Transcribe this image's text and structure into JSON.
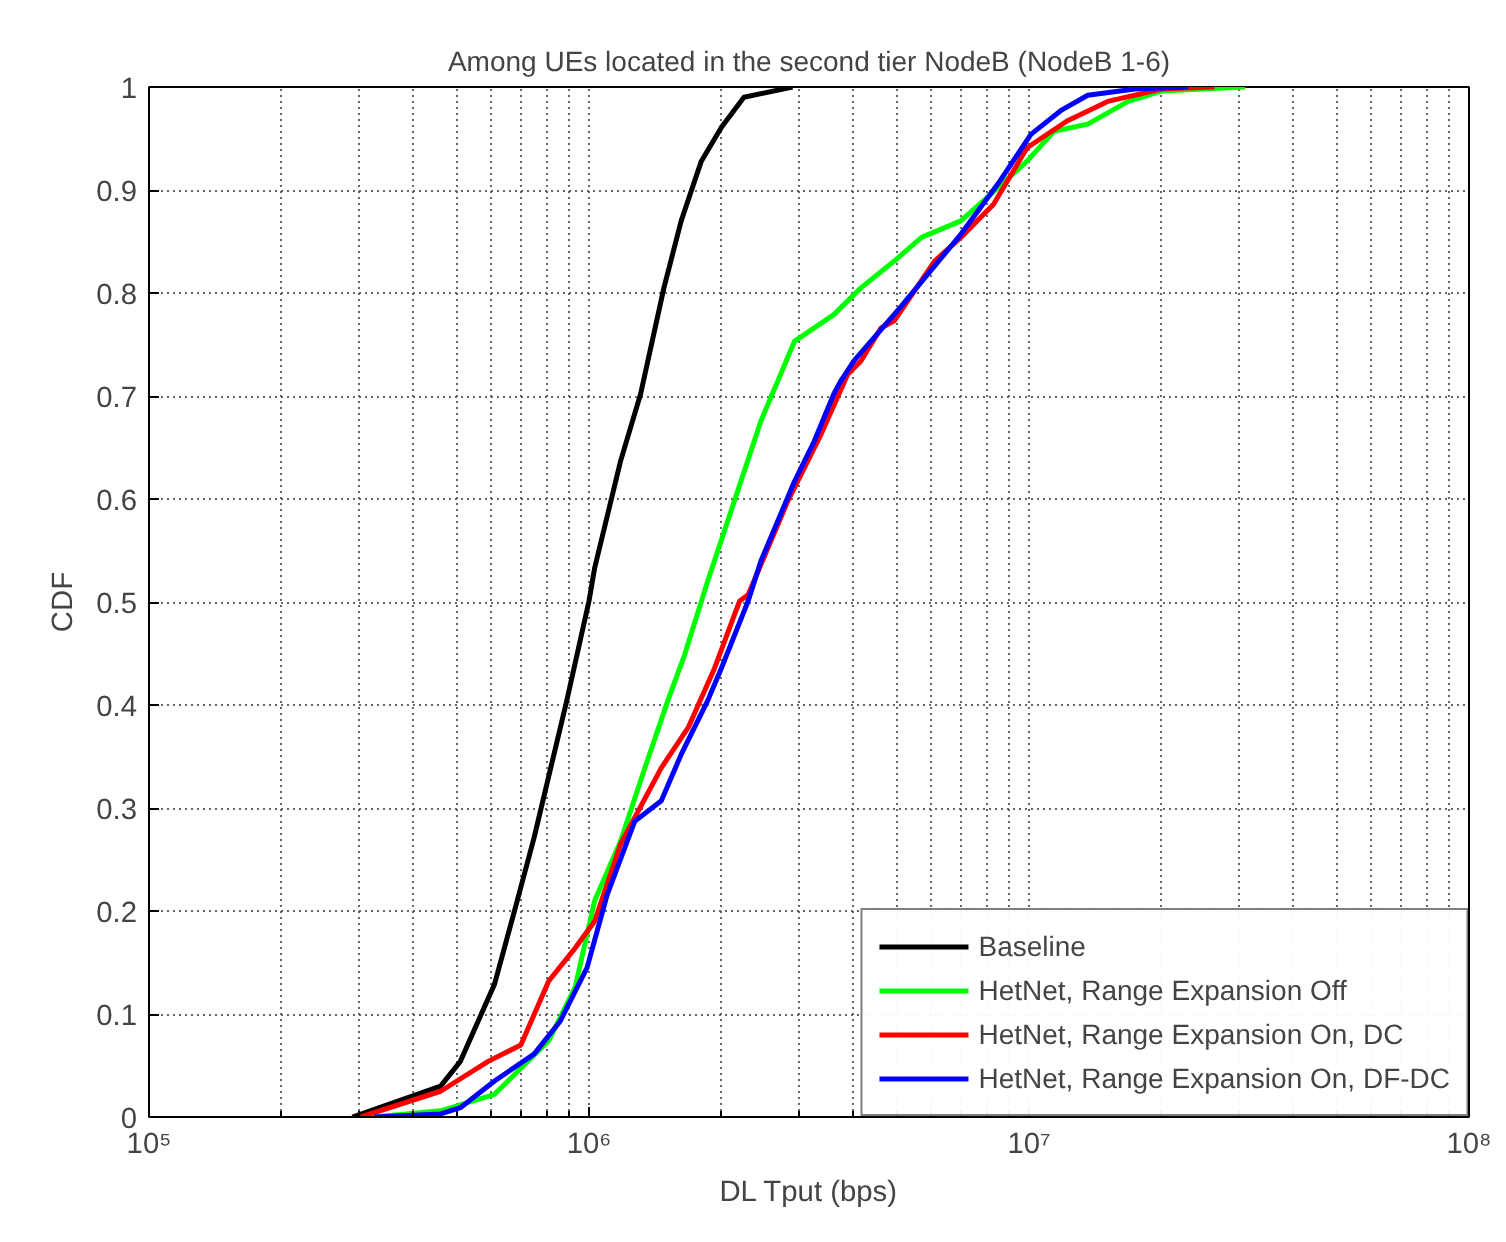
{
  "chart_data": {
    "type": "line",
    "title": "Among UEs located in the second tier NodeB (NodeB 1-6)",
    "xlabel": "DL Tput (bps)",
    "ylabel": "CDF",
    "log": "x",
    "grid": true,
    "legend": "bottom right",
    "line_style": "solid",
    "marker": "none",
    "xlim": [
      100000,
      100000000
    ],
    "ylim": [
      0,
      1
    ],
    "xticks": [
      {
        "value": 100000,
        "label": "10⁵"
      },
      {
        "value": 1000000,
        "label": "10⁶"
      },
      {
        "value": 10000000,
        "label": "10⁷"
      },
      {
        "value": 100000000,
        "label": "10⁸"
      }
    ],
    "yticks": [
      0,
      0.1,
      0.2,
      0.3,
      0.4,
      0.5,
      0.6,
      0.7,
      0.8,
      0.9,
      1
    ],
    "series": [
      {
        "name": "Baseline",
        "color": "#000000",
        "x": [
          290000,
          460000,
          510000,
          610000,
          680000,
          750000,
          890000,
          1000000,
          1030000,
          1180000,
          1310000,
          1480000,
          1620000,
          1800000,
          2000000,
          2250000,
          2900000
        ],
        "values": [
          0,
          0.03,
          0.054,
          0.129,
          0.203,
          0.271,
          0.404,
          0.501,
          0.533,
          0.637,
          0.702,
          0.805,
          0.87,
          0.928,
          0.961,
          0.99,
          1.0
        ]
      },
      {
        "name": "HetNet, Range Expansion Off",
        "color": "#00ff00",
        "x": [
          325000,
          460000,
          610000,
          810000,
          930000,
          1030000,
          1180000,
          1340000,
          1510000,
          1650000,
          1860000,
          2140000,
          2460000,
          2930000,
          3600000,
          4150000,
          4940000,
          5700000,
          7000000,
          8050000,
          9900000,
          11400000,
          13600000,
          16800000,
          20000000,
          31000000
        ],
        "values": [
          0,
          0.006,
          0.022,
          0.074,
          0.126,
          0.21,
          0.268,
          0.339,
          0.404,
          0.449,
          0.52,
          0.598,
          0.676,
          0.753,
          0.779,
          0.805,
          0.831,
          0.854,
          0.87,
          0.893,
          0.928,
          0.957,
          0.964,
          0.986,
          0.996,
          1.0
        ]
      },
      {
        "name": "HetNet, Range Expansion On, DC",
        "color": "#ff0000",
        "x": [
          303000,
          460000,
          590000,
          700000,
          810000,
          930000,
          1030000,
          1180000,
          1460000,
          1680000,
          1930000,
          2200000,
          2300000,
          2830000,
          3370000,
          3870000,
          4150000,
          4610000,
          4940000,
          6100000,
          7000000,
          8300000,
          9900000,
          12200000,
          15100000,
          20000000,
          26400000
        ],
        "values": [
          0,
          0.025,
          0.054,
          0.07,
          0.132,
          0.164,
          0.19,
          0.265,
          0.339,
          0.378,
          0.436,
          0.501,
          0.507,
          0.598,
          0.663,
          0.721,
          0.734,
          0.766,
          0.773,
          0.831,
          0.854,
          0.886,
          0.941,
          0.967,
          0.986,
          0.998,
          1.0
        ]
      },
      {
        "name": "HetNet, Range Expansion On, DF-DC",
        "color": "#0000ff",
        "x": [
          325000,
          460000,
          510000,
          610000,
          750000,
          860000,
          990000,
          1100000,
          1270000,
          1460000,
          1620000,
          1860000,
          2000000,
          2300000,
          2460000,
          2930000,
          3250000,
          3600000,
          3740000,
          4000000,
          5100000,
          7000000,
          8600000,
          10100000,
          11800000,
          13600000,
          17400000,
          23000000
        ],
        "values": [
          0,
          0.003,
          0.009,
          0.035,
          0.061,
          0.093,
          0.145,
          0.216,
          0.287,
          0.307,
          0.352,
          0.404,
          0.436,
          0.501,
          0.54,
          0.617,
          0.656,
          0.702,
          0.715,
          0.734,
          0.786,
          0.857,
          0.909,
          0.954,
          0.977,
          0.992,
          0.998,
          1.0
        ]
      }
    ]
  }
}
